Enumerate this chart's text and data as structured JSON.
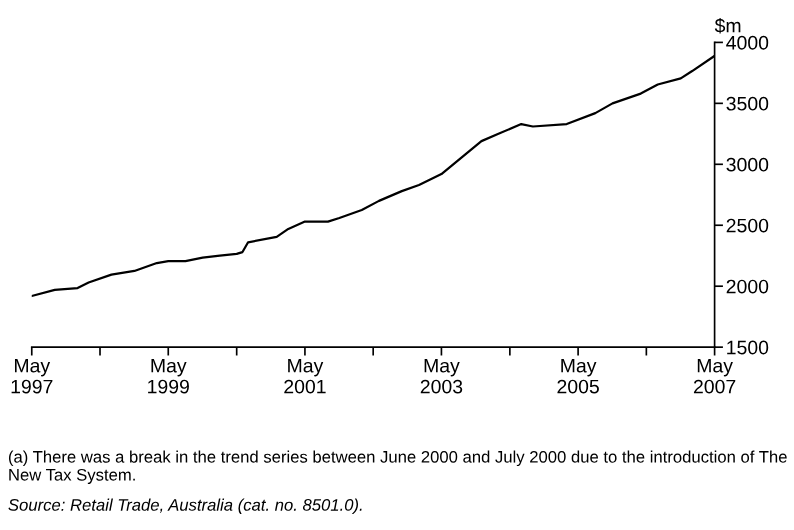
{
  "chart_data": {
    "type": "line",
    "ylabel": "$m",
    "x": [
      "1997-05",
      "1997-09",
      "1998-01",
      "1998-03",
      "1998-07",
      "1998-11",
      "1999-03",
      "1999-05",
      "1999-08",
      "1999-11",
      "2000-02",
      "2000-05",
      "2000-06",
      "2000-07",
      "2000-12",
      "2001-02",
      "2001-05",
      "2001-09",
      "2001-11",
      "2002-03",
      "2002-06",
      "2002-10",
      "2003-01",
      "2003-05",
      "2003-12",
      "2004-03",
      "2004-07",
      "2004-09",
      "2005-03",
      "2005-08",
      "2005-11",
      "2006-04",
      "2006-07",
      "2006-11",
      "2007-01",
      "2007-05"
    ],
    "series": [
      {
        "color": "#000000",
        "values": [
          1920,
          1970,
          1985,
          2030,
          2095,
          2125,
          2190,
          2205,
          2205,
          2235,
          2250,
          2265,
          2280,
          2360,
          2405,
          2470,
          2530,
          2530,
          2560,
          2625,
          2700,
          2780,
          2830,
          2920,
          3190,
          3250,
          3330,
          3310,
          3330,
          3420,
          3500,
          3580,
          3655,
          3705,
          3765,
          3890
        ]
      }
    ],
    "xlim": [
      "1997-05",
      "2007-05"
    ],
    "xticks": [
      {
        "value": "1997-05",
        "label": "May\n1997"
      },
      {
        "value": "1998-05",
        "label": null
      },
      {
        "value": "1999-05",
        "label": "May\n1999"
      },
      {
        "value": "2000-05",
        "label": null
      },
      {
        "value": "2001-05",
        "label": "May\n2001"
      },
      {
        "value": "2002-05",
        "label": null
      },
      {
        "value": "2003-05",
        "label": "May\n2003"
      },
      {
        "value": "2004-05",
        "label": null
      },
      {
        "value": "2005-05",
        "label": "May\n2005"
      },
      {
        "value": "2006-05",
        "label": null
      },
      {
        "value": "2007-05",
        "label": "May\n2007"
      }
    ],
    "ylim": [
      1500,
      4000
    ],
    "yticks": [
      1500,
      2000,
      2500,
      3000,
      3500,
      4000
    ],
    "grid": false,
    "legend": false,
    "annotations": [
      "(a) There was a break in the trend series between June 2000 and July 2000 due to the introduction of The New Tax System.",
      "Source: Retail Trade, Australia (cat. no. 8501.0)."
    ]
  }
}
